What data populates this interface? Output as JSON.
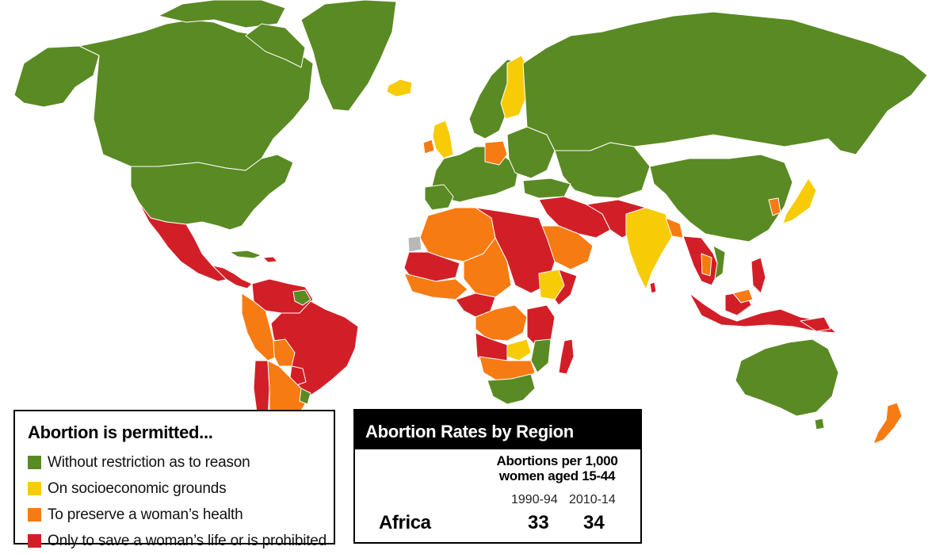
{
  "colors": {
    "ocean": "#ffffff",
    "no_restriction": "#5a8a23",
    "socioeconomic": "#f7cc07",
    "health": "#f77b13",
    "life_or_prohibited": "#d21f27",
    "no_data": "#b8b8b8",
    "border": "#ffffff"
  },
  "legend": {
    "title": "Abortion is permitted...",
    "items": [
      {
        "label": "Without restriction as to reason",
        "color": "#5a8a23"
      },
      {
        "label": "On socioeconomic grounds",
        "color": "#f7cc07"
      },
      {
        "label": "To preserve a woman’s health",
        "color": "#f77b13"
      },
      {
        "label": "Only to save a woman’s life or is prohibited",
        "color": "#d21f27"
      }
    ]
  },
  "rates": {
    "title": "Abortion Rates by Region",
    "subtitle_line1": "Abortions per 1,000",
    "subtitle_line2": "women aged 15-44",
    "col1": "1990-94",
    "col2": "2010-14",
    "rows": [
      {
        "region": "Africa",
        "v1": "33",
        "v2": "34"
      }
    ]
  }
}
